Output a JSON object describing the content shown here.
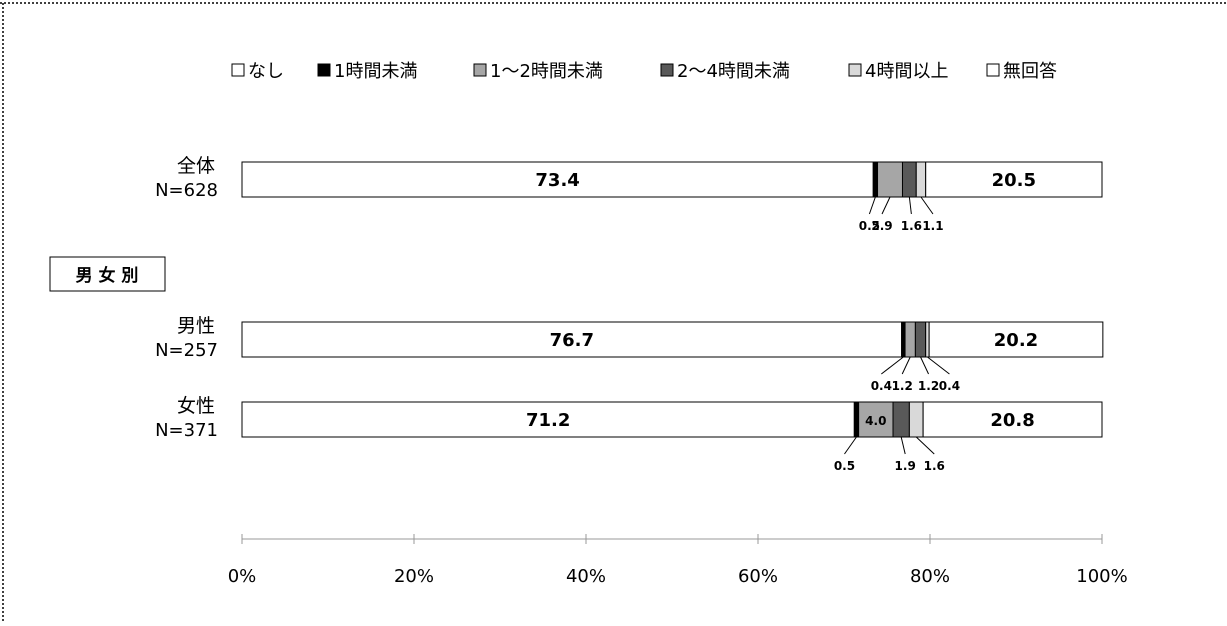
{
  "chart_data": {
    "type": "bar",
    "stacked": true,
    "orientation": "horizontal",
    "legend_position": "top",
    "group_label": "男 女 別",
    "categories": [
      {
        "label": "全体",
        "sublabel": "N=628"
      },
      {
        "label": "男性",
        "sublabel": "N=257"
      },
      {
        "label": "女性",
        "sublabel": "N=371"
      }
    ],
    "series": [
      {
        "name": "なし",
        "color": "#ffffff",
        "values": [
          73.4,
          76.7,
          71.2
        ]
      },
      {
        "name": "1時間未満",
        "color": "#000000",
        "values": [
          0.5,
          0.4,
          0.5
        ]
      },
      {
        "name": "1～2時間未満",
        "color": "#a6a6a6",
        "values": [
          2.9,
          1.2,
          4.0
        ]
      },
      {
        "name": "2～4時間未満",
        "color": "#595959",
        "values": [
          1.6,
          1.2,
          1.9
        ]
      },
      {
        "name": "4時間以上",
        "color": "#d9d9d9",
        "values": [
          1.1,
          0.4,
          1.6
        ]
      },
      {
        "name": "無回答",
        "color": "#ffffff",
        "values": [
          20.5,
          20.2,
          20.8
        ]
      }
    ],
    "value_labels": [
      [
        "73.4",
        "0.5",
        "2.9",
        "1.6",
        "1.1",
        "20.5"
      ],
      [
        "76.7",
        "0.4",
        "1.2",
        "1.2",
        "0.4",
        "20.2"
      ],
      [
        "71.2",
        "0.5",
        "4.0",
        "1.9",
        "1.6",
        "20.8"
      ]
    ],
    "xlim": [
      0,
      100
    ],
    "xticks": [
      "0%",
      "20%",
      "40%",
      "60%",
      "80%",
      "100%"
    ],
    "grid": false
  }
}
